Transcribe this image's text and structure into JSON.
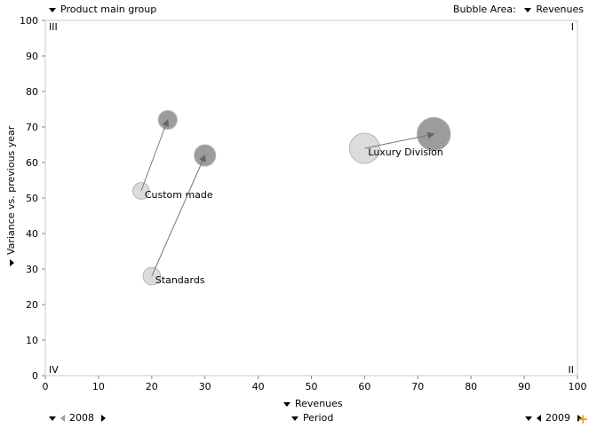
{
  "controls": {
    "group_selector": "Product main group",
    "bubble_area_label": "Bubble Area:",
    "bubble_area_value": "Revenues",
    "x_selector": "Revenues",
    "y_selector": "Variance vs. previous year",
    "period_label": "Period",
    "period_from": "2008",
    "period_to": "2009"
  },
  "quadrants": {
    "top_left": "III",
    "top_right": "I",
    "bottom_left": "IV",
    "bottom_right": "II"
  },
  "chart_data": {
    "type": "scatter",
    "subtype": "bubble",
    "title": "",
    "xlabel": "Revenues",
    "ylabel": "Variance vs. previous year",
    "xlim": [
      0,
      100
    ],
    "ylim": [
      0,
      100
    ],
    "xticks": [
      0,
      10,
      20,
      30,
      40,
      50,
      60,
      70,
      80,
      90,
      100
    ],
    "yticks": [
      0,
      10,
      20,
      30,
      40,
      50,
      60,
      70,
      80,
      90,
      100
    ],
    "grid": false,
    "periods": [
      "2008",
      "2009"
    ],
    "series": [
      {
        "name": "Custom made",
        "from": {
          "period": "2008",
          "x": 18,
          "y": 52,
          "size": 18
        },
        "to": {
          "period": "2009",
          "x": 23,
          "y": 72,
          "size": 23
        }
      },
      {
        "name": "Standards",
        "from": {
          "period": "2008",
          "x": 20,
          "y": 28,
          "size": 20
        },
        "to": {
          "period": "2009",
          "x": 30,
          "y": 62,
          "size": 30
        }
      },
      {
        "name": "Luxury Division",
        "from": {
          "period": "2008",
          "x": 60,
          "y": 64,
          "size": 60
        },
        "to": {
          "period": "2009",
          "x": 73,
          "y": 68,
          "size": 73
        }
      }
    ]
  }
}
